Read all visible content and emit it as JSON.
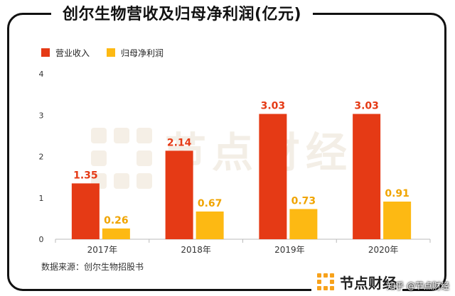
{
  "header": {
    "title": "创尔生物营收及归母净利润(亿元)"
  },
  "chart_data": {
    "type": "bar",
    "title": "创尔生物营收及归母净利润(亿元)",
    "categories": [
      "2017年",
      "2018年",
      "2019年",
      "2020年"
    ],
    "series": [
      {
        "name": "营业收入",
        "values": [
          1.35,
          2.14,
          3.03,
          3.03
        ],
        "color": "#e53a15",
        "labels": [
          "1.35",
          "2.14",
          "3.03",
          "3.03"
        ]
      },
      {
        "name": "归母净利润",
        "values": [
          0.26,
          0.67,
          0.73,
          0.91
        ],
        "color": "#fdb913",
        "labels": [
          "0.26",
          "0.67",
          "0.73",
          "0.91"
        ]
      }
    ],
    "ylim": [
      0,
      4
    ],
    "yticks": [
      "0",
      "1",
      "2",
      "3",
      "4"
    ],
    "xlabel": "",
    "ylabel": "",
    "legend": "top-left"
  },
  "footer": {
    "source": "数据来源：创尔生物招股书"
  },
  "brand": {
    "name": "节点财经"
  },
  "watermark": {
    "text": "节点财经"
  },
  "credit": {
    "text": "知乎 @节点财经"
  },
  "colors": {
    "revenue": "#e53a15",
    "profit": "#fdb913",
    "axis": "#bbbbbb",
    "label_revenue": "#e53a15",
    "label_profit": "#f0a400",
    "brand_orange": "#f7a21b"
  }
}
